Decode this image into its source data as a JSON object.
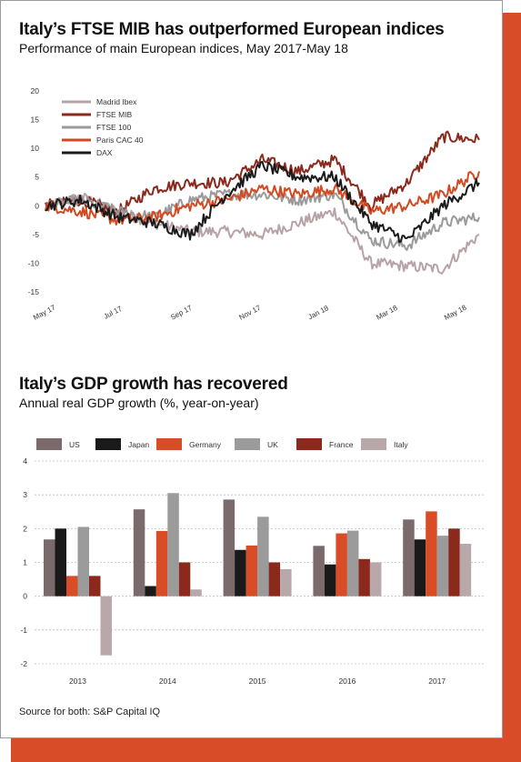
{
  "colors": {
    "accent": "#d84d28",
    "madrid_ibex": "#b7a3a6",
    "ftse_mib": "#8b2a1c",
    "ftse_100": "#9a9a9a",
    "paris_cac_40": "#d34a22",
    "dax": "#1b1b1b",
    "us": "#7a6a6c",
    "japan": "#1a1a1a",
    "germany": "#d84d28",
    "uk": "#9b9b9b",
    "france": "#8b2a1c",
    "italy": "#b9a8aa"
  },
  "source": "Source for both: S&P Capital IQ",
  "chart_data": [
    {
      "type": "line",
      "title": "Italy’s FTSE MIB has outperformed European indices",
      "subtitle": "Performance of main European indices, May 2017-May 18",
      "xlabel": "",
      "ylabel": "",
      "ylim": [
        -15,
        20
      ],
      "yticks": [
        20,
        15,
        10,
        5,
        0,
        -5,
        -10,
        -15
      ],
      "xtick_labels": [
        "May 17",
        "Jul 17",
        "Sep 17",
        "Nov 17",
        "Jan 18",
        "Mar 18",
        "May 18"
      ],
      "grid": false,
      "legend": "top-left",
      "x": [
        "May 17",
        "Jun 17",
        "Jul 17",
        "Aug 17",
        "Sep 17",
        "Oct 17",
        "Nov 17",
        "Dec 17",
        "Jan 18",
        "Feb 18",
        "Mar 18",
        "Apr 18",
        "May 18"
      ],
      "series": [
        {
          "name": "Madrid Ibex",
          "values": [
            0,
            1.5,
            -1,
            -3,
            -4.5,
            -4.5,
            -5,
            -3,
            -1,
            -10,
            -10.5,
            -11,
            -5
          ]
        },
        {
          "name": "FTSE MIB",
          "values": [
            0,
            1,
            -1,
            3,
            4,
            4,
            8,
            6,
            8,
            0,
            4,
            12,
            11.5
          ]
        },
        {
          "name": "FTSE 100",
          "values": [
            0,
            1,
            -1,
            -2,
            1,
            2,
            2,
            1,
            2,
            -6,
            -7,
            -3,
            -2
          ]
        },
        {
          "name": "Paris CAC 40",
          "values": [
            0,
            -1,
            -2.5,
            -2,
            0,
            1,
            3,
            2,
            3,
            -1,
            0,
            2,
            6
          ]
        },
        {
          "name": "DAX",
          "values": [
            0,
            1,
            -2,
            -3,
            -5,
            2,
            7,
            5,
            5,
            -3,
            -6,
            0,
            4
          ]
        }
      ]
    },
    {
      "type": "bar",
      "title": "Italy’s GDP growth has recovered",
      "subtitle": "Annual real GDP growth (%, year-on-year)",
      "xlabel": "",
      "ylabel": "",
      "ylim": [
        -2,
        4
      ],
      "yticks": [
        4,
        3,
        2,
        1,
        0,
        -1,
        -2
      ],
      "grid": false,
      "legend": "top",
      "categories": [
        "2013",
        "2014",
        "2015",
        "2016",
        "2017"
      ],
      "series": [
        {
          "name": "US",
          "values": [
            1.68,
            2.57,
            2.86,
            1.49,
            2.27
          ]
        },
        {
          "name": "Japan",
          "values": [
            2.0,
            0.3,
            1.37,
            0.94,
            1.68
          ]
        },
        {
          "name": "Germany",
          "values": [
            0.6,
            1.93,
            1.5,
            1.86,
            2.51
          ]
        },
        {
          "name": "UK",
          "values": [
            2.05,
            3.05,
            2.35,
            1.94,
            1.79
          ]
        },
        {
          "name": "France",
          "values": [
            0.6,
            1.0,
            1.0,
            1.1,
            2.0
          ]
        },
        {
          "name": "Italy",
          "values": [
            -1.75,
            0.2,
            0.8,
            1.0,
            1.55
          ]
        }
      ]
    }
  ]
}
